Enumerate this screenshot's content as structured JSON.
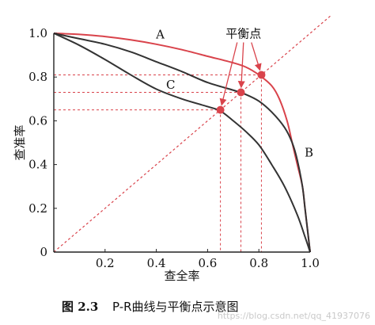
{
  "chart_data": {
    "type": "line",
    "title": "",
    "xlabel": "查全率",
    "ylabel": "查准率",
    "xlim": [
      0,
      1
    ],
    "ylim": [
      0,
      1
    ],
    "grid": false,
    "x_ticks": [
      "0.2",
      "0.4",
      "0.6",
      "0.8",
      "1.0"
    ],
    "y_ticks": [
      "0",
      "0.2",
      "0.4",
      "0.6",
      "0.8",
      "1.0"
    ],
    "series": [
      {
        "name": "A",
        "color": "#d9434b",
        "points": [
          [
            0,
            1.0
          ],
          [
            0.1,
            0.995
          ],
          [
            0.2,
            0.985
          ],
          [
            0.3,
            0.97
          ],
          [
            0.4,
            0.95
          ],
          [
            0.5,
            0.925
          ],
          [
            0.6,
            0.895
          ],
          [
            0.7,
            0.865
          ],
          [
            0.75,
            0.845
          ],
          [
            0.8,
            0.81
          ],
          [
            0.85,
            0.76
          ],
          [
            0.88,
            0.7
          ],
          [
            0.91,
            0.6
          ],
          [
            0.93,
            0.5
          ],
          [
            0.95,
            0.4
          ],
          [
            0.97,
            0.3
          ],
          [
            0.98,
            0.2
          ],
          [
            0.99,
            0.1
          ],
          [
            1.0,
            0.0
          ]
        ]
      },
      {
        "name": "B",
        "color": "#333333",
        "points": [
          [
            0,
            1.0
          ],
          [
            0.1,
            0.975
          ],
          [
            0.2,
            0.95
          ],
          [
            0.3,
            0.915
          ],
          [
            0.4,
            0.87
          ],
          [
            0.5,
            0.825
          ],
          [
            0.6,
            0.775
          ],
          [
            0.7,
            0.74
          ],
          [
            0.75,
            0.72
          ],
          [
            0.8,
            0.69
          ],
          [
            0.85,
            0.64
          ],
          [
            0.9,
            0.57
          ],
          [
            0.93,
            0.5
          ],
          [
            0.95,
            0.42
          ],
          [
            0.97,
            0.3
          ],
          [
            0.98,
            0.2
          ],
          [
            0.99,
            0.1
          ],
          [
            1.0,
            0.0
          ]
        ]
      },
      {
        "name": "C",
        "color": "#333333",
        "points": [
          [
            0,
            1.0
          ],
          [
            0.1,
            0.945
          ],
          [
            0.2,
            0.88
          ],
          [
            0.3,
            0.81
          ],
          [
            0.4,
            0.745
          ],
          [
            0.5,
            0.7
          ],
          [
            0.6,
            0.665
          ],
          [
            0.65,
            0.645
          ],
          [
            0.7,
            0.6
          ],
          [
            0.75,
            0.55
          ],
          [
            0.8,
            0.49
          ],
          [
            0.85,
            0.4
          ],
          [
            0.9,
            0.3
          ],
          [
            0.95,
            0.17
          ],
          [
            0.98,
            0.07
          ],
          [
            1.0,
            0.0
          ]
        ]
      }
    ],
    "diagonal": {
      "color": "#d9434b",
      "points": [
        [
          0,
          0
        ],
        [
          1.08,
          1.08
        ]
      ]
    },
    "break_even_points": [
      {
        "x": 0.65,
        "y": 0.65,
        "color": "#d9434b"
      },
      {
        "x": 0.73,
        "y": 0.73,
        "color": "#d9434b"
      },
      {
        "x": 0.81,
        "y": 0.81,
        "color": "#d9434b"
      }
    ],
    "curve_labels": [
      {
        "text": "A",
        "x": 0.42,
        "y": 0.995
      },
      {
        "text": "C",
        "x": 0.46,
        "y": 0.765
      },
      {
        "text": "B",
        "x": 1.0,
        "y": 0.455
      }
    ],
    "annotation": {
      "text": "平衡点",
      "x": 0.74,
      "y": 0.98,
      "arrow_color": "#d9434b"
    }
  },
  "caption": {
    "number": "图 2.3",
    "text": "P-R曲线与平衡点示意图"
  },
  "watermark": "https://blog.csdn.net/qq_41937076"
}
